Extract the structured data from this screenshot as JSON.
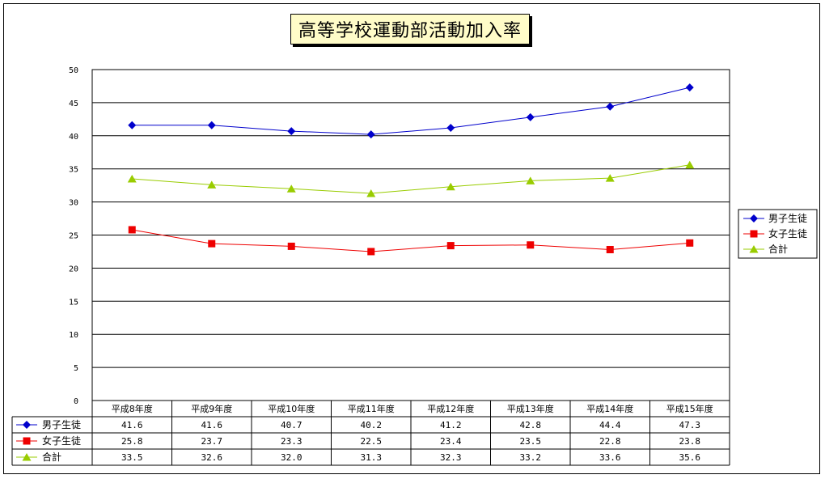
{
  "chart_data": {
    "type": "line",
    "title": "高等学校運動部活動加入率",
    "categories": [
      "平成8年度",
      "平成9年度",
      "平成10年度",
      "平成11年度",
      "平成12年度",
      "平成13年度",
      "平成14年度",
      "平成15年度"
    ],
    "series": [
      {
        "name": "男子生徒",
        "color": "#0000cc",
        "marker": "diamond",
        "values": [
          41.6,
          41.6,
          40.7,
          40.2,
          41.2,
          42.8,
          44.4,
          47.3
        ]
      },
      {
        "name": "女子生徒",
        "color": "#ee0000",
        "marker": "square",
        "values": [
          25.8,
          23.7,
          23.3,
          22.5,
          23.4,
          23.5,
          22.8,
          23.8
        ]
      },
      {
        "name": "合計",
        "color": "#99cc00",
        "marker": "triangle",
        "values": [
          33.5,
          32.6,
          32.0,
          31.3,
          32.3,
          33.2,
          33.6,
          35.6
        ]
      }
    ],
    "ylim": [
      0,
      50
    ],
    "yticks": [
      0,
      5,
      10,
      15,
      20,
      25,
      30,
      35,
      40,
      45,
      50
    ],
    "grid": true,
    "legend": "right",
    "data_table": true
  }
}
